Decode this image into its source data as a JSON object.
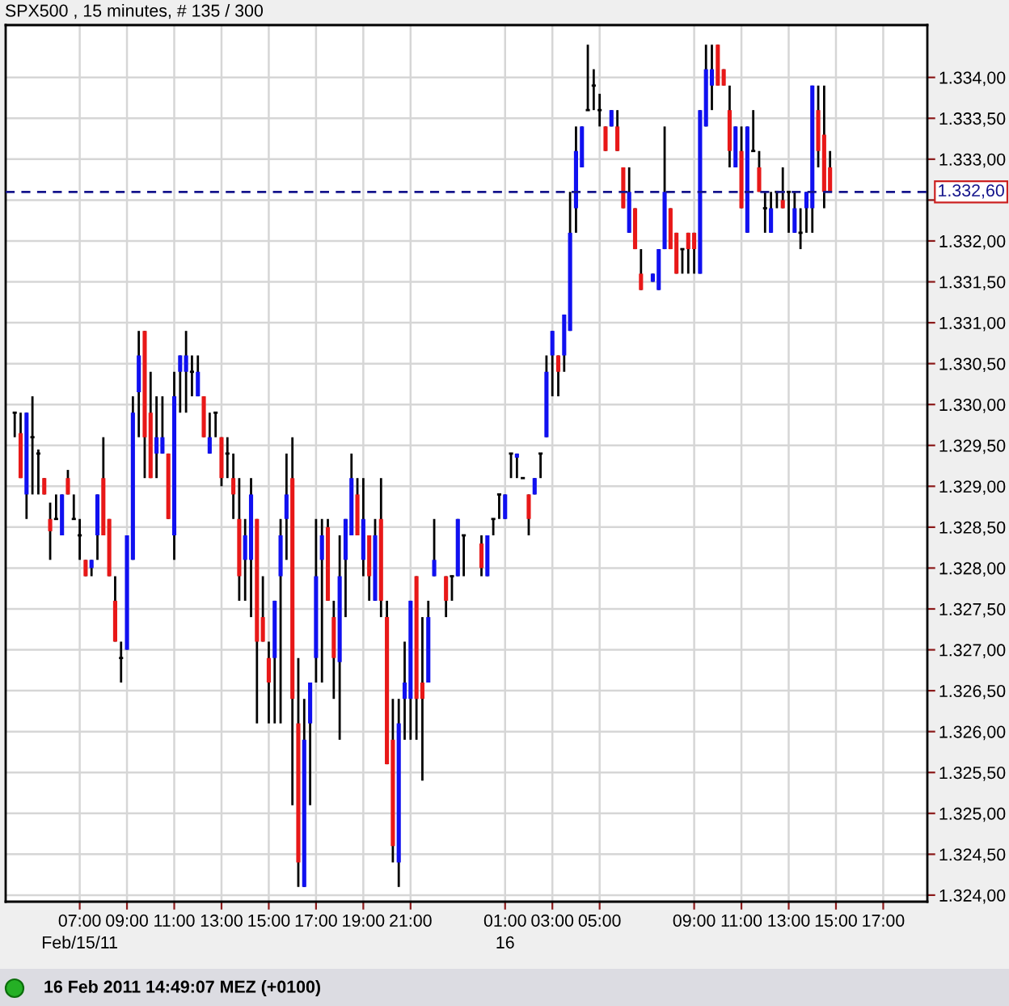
{
  "chart_data": {
    "type": "candlestick",
    "title": "SPX500 , 15 minutes, # 135 / 300",
    "annotations": [
      "16 Feb 2011 14:49:07 MEZ (+0100)"
    ],
    "x": [
      "2011-02-15T04:15",
      "2011-02-15T04:30",
      "2011-02-15T04:45",
      "2011-02-15T05:00",
      "2011-02-15T05:15",
      "2011-02-15T05:30",
      "2011-02-15T05:45",
      "2011-02-15T06:00",
      "2011-02-15T06:15",
      "2011-02-15T06:30",
      "2011-02-15T06:45",
      "2011-02-15T07:00",
      "2011-02-15T07:15",
      "2011-02-15T07:30",
      "2011-02-15T07:45",
      "2011-02-15T08:00",
      "2011-02-15T08:15",
      "2011-02-15T08:30",
      "2011-02-15T08:45",
      "2011-02-15T09:00",
      "2011-02-15T09:15",
      "2011-02-15T09:30",
      "2011-02-15T09:45",
      "2011-02-15T10:00",
      "2011-02-15T10:15",
      "2011-02-15T10:30",
      "2011-02-15T10:45",
      "2011-02-15T11:00",
      "2011-02-15T11:15",
      "2011-02-15T11:30",
      "2011-02-15T11:45",
      "2011-02-15T12:00",
      "2011-02-15T12:15",
      "2011-02-15T12:30",
      "2011-02-15T12:45",
      "2011-02-15T13:00",
      "2011-02-15T13:15",
      "2011-02-15T13:30",
      "2011-02-15T13:45",
      "2011-02-15T14:00",
      "2011-02-15T14:15",
      "2011-02-15T14:30",
      "2011-02-15T14:45",
      "2011-02-15T15:00",
      "2011-02-15T15:15",
      "2011-02-15T15:30",
      "2011-02-15T15:45",
      "2011-02-15T16:00",
      "2011-02-15T16:15",
      "2011-02-15T16:30",
      "2011-02-15T16:45",
      "2011-02-15T17:00",
      "2011-02-15T17:15",
      "2011-02-15T17:30",
      "2011-02-15T17:45",
      "2011-02-15T18:00",
      "2011-02-15T18:15",
      "2011-02-15T18:30",
      "2011-02-15T18:45",
      "2011-02-15T19:00",
      "2011-02-15T19:15",
      "2011-02-15T19:30",
      "2011-02-15T19:45",
      "2011-02-15T20:00",
      "2011-02-15T20:15",
      "2011-02-15T20:30",
      "2011-02-15T20:45",
      "2011-02-15T21:00",
      "2011-02-15T21:15",
      "2011-02-15T21:30",
      "2011-02-15T21:45",
      "2011-02-15T22:00",
      "2011-02-15T22:30",
      "2011-02-15T22:45",
      "2011-02-15T23:00",
      "2011-02-15T23:15",
      "2011-02-16T00:00",
      "2011-02-16T00:15",
      "2011-02-16T00:30",
      "2011-02-16T00:45",
      "2011-02-16T01:00",
      "2011-02-16T01:15",
      "2011-02-16T01:30",
      "2011-02-16T01:45",
      "2011-02-16T02:00",
      "2011-02-16T02:15",
      "2011-02-16T02:30",
      "2011-02-16T02:45",
      "2011-02-16T03:00",
      "2011-02-16T03:15",
      "2011-02-16T03:30",
      "2011-02-16T03:45",
      "2011-02-16T04:00",
      "2011-02-16T04:15",
      "2011-02-16T04:30",
      "2011-02-16T04:45",
      "2011-02-16T05:00",
      "2011-02-16T05:15",
      "2011-02-16T05:30",
      "2011-02-16T05:45",
      "2011-02-16T06:00",
      "2011-02-16T06:15",
      "2011-02-16T06:30",
      "2011-02-16T06:45",
      "2011-02-16T07:15",
      "2011-02-16T07:30",
      "2011-02-16T07:45",
      "2011-02-16T08:00",
      "2011-02-16T08:15",
      "2011-02-16T08:30",
      "2011-02-16T08:45",
      "2011-02-16T09:00",
      "2011-02-16T09:15",
      "2011-02-16T09:30",
      "2011-02-16T09:45",
      "2011-02-16T10:00",
      "2011-02-16T10:15",
      "2011-02-16T10:30",
      "2011-02-16T10:45",
      "2011-02-16T11:00",
      "2011-02-16T11:15",
      "2011-02-16T11:30",
      "2011-02-16T11:45",
      "2011-02-16T12:00",
      "2011-02-16T12:15",
      "2011-02-16T12:30",
      "2011-02-16T12:45",
      "2011-02-16T13:00",
      "2011-02-16T13:15",
      "2011-02-16T13:30",
      "2011-02-16T13:45",
      "2011-02-16T14:00",
      "2011-02-16T14:15",
      "2011-02-16T14:30",
      "2011-02-16T14:45"
    ],
    "ohlc": [
      [
        1329.9,
        1329.9,
        1329.6,
        1329.9
      ],
      [
        1329.65,
        1329.9,
        1329.1,
        1329.1
      ],
      [
        1328.9,
        1329.9,
        1328.6,
        1329.9
      ],
      [
        1329.6,
        1330.1,
        1328.9,
        1329.6
      ],
      [
        1329.4,
        1329.45,
        1328.9,
        1329.4
      ],
      [
        1329.1,
        1329.1,
        1328.9,
        1328.9
      ],
      [
        1328.6,
        1328.8,
        1328.1,
        1328.45
      ],
      [
        1328.6,
        1328.9,
        1328.6,
        1328.6
      ],
      [
        1328.4,
        1328.9,
        1328.4,
        1328.9
      ],
      [
        1329.1,
        1329.2,
        1328.9,
        1328.9
      ],
      [
        1328.6,
        1328.9,
        1328.6,
        1328.6
      ],
      [
        1328.4,
        1328.6,
        1328.1,
        1328.4
      ],
      [
        1328.1,
        1328.1,
        1327.9,
        1327.9
      ],
      [
        1328.0,
        1328.1,
        1327.9,
        1328.1
      ],
      [
        1328.4,
        1328.9,
        1328.1,
        1328.9
      ],
      [
        1329.1,
        1329.6,
        1328.4,
        1328.4
      ],
      [
        1328.6,
        1328.6,
        1327.9,
        1327.9
      ],
      [
        1327.6,
        1327.9,
        1327.1,
        1327.1
      ],
      [
        1326.9,
        1327.1,
        1326.6,
        1326.9
      ],
      [
        1327.0,
        1328.4,
        1327.0,
        1328.4
      ],
      [
        1328.1,
        1330.1,
        1328.1,
        1329.9
      ],
      [
        1330.15,
        1330.9,
        1329.6,
        1330.6
      ],
      [
        1330.9,
        1330.9,
        1329.1,
        1329.6
      ],
      [
        1329.9,
        1330.4,
        1329.1,
        1329.1
      ],
      [
        1329.4,
        1330.1,
        1329.1,
        1329.6
      ],
      [
        1329.4,
        1330.1,
        1329.4,
        1329.6
      ],
      [
        1329.4,
        1329.4,
        1328.6,
        1328.6
      ],
      [
        1328.4,
        1330.4,
        1328.1,
        1330.1
      ],
      [
        1330.4,
        1330.6,
        1329.9,
        1330.6
      ],
      [
        1330.4,
        1330.9,
        1329.9,
        1330.6
      ],
      [
        1330.4,
        1330.6,
        1330.1,
        1330.4
      ],
      [
        1330.1,
        1330.6,
        1330.1,
        1330.4
      ],
      [
        1330.1,
        1330.1,
        1329.6,
        1329.6
      ],
      [
        1329.4,
        1329.9,
        1329.4,
        1329.6
      ],
      [
        1329.9,
        1329.9,
        1329.6,
        1329.9
      ],
      [
        1329.6,
        1329.6,
        1329.0,
        1329.1
      ],
      [
        1329.4,
        1329.6,
        1329.1,
        1329.4
      ],
      [
        1329.1,
        1329.4,
        1328.6,
        1328.9
      ],
      [
        1328.6,
        1329.1,
        1327.6,
        1327.9
      ],
      [
        1328.1,
        1328.6,
        1327.6,
        1328.4
      ],
      [
        1328.1,
        1329.1,
        1327.4,
        1328.9
      ],
      [
        1328.6,
        1328.6,
        1326.1,
        1327.1
      ],
      [
        1327.4,
        1327.9,
        1327.1,
        1327.1
      ],
      [
        1326.9,
        1327.1,
        1326.1,
        1326.6
      ],
      [
        1326.9,
        1327.6,
        1326.1,
        1327.6
      ],
      [
        1327.9,
        1328.6,
        1326.1,
        1328.4
      ],
      [
        1328.6,
        1329.4,
        1328.1,
        1328.9
      ],
      [
        1329.1,
        1329.6,
        1325.1,
        1326.4
      ],
      [
        1326.1,
        1326.9,
        1324.1,
        1324.4
      ],
      [
        1324.1,
        1326.4,
        1324.1,
        1325.9
      ],
      [
        1326.1,
        1326.6,
        1325.1,
        1326.6
      ],
      [
        1326.9,
        1328.6,
        1326.6,
        1327.9
      ],
      [
        1328.1,
        1328.6,
        1326.6,
        1328.4
      ],
      [
        1328.5,
        1328.6,
        1327.6,
        1327.6
      ],
      [
        1327.4,
        1327.6,
        1326.4,
        1326.9
      ],
      [
        1326.85,
        1328.4,
        1325.9,
        1327.9
      ],
      [
        1328.1,
        1328.6,
        1327.4,
        1328.6
      ],
      [
        1328.4,
        1329.4,
        1328.4,
        1329.1
      ],
      [
        1328.9,
        1329.1,
        1328.4,
        1328.4
      ],
      [
        1328.1,
        1329.1,
        1327.9,
        1328.6
      ],
      [
        1328.4,
        1328.4,
        1327.6,
        1327.9
      ],
      [
        1327.6,
        1328.6,
        1327.6,
        1328.4
      ],
      [
        1328.6,
        1329.1,
        1327.4,
        1327.6
      ],
      [
        1327.4,
        1327.6,
        1325.6,
        1325.6
      ],
      [
        1325.9,
        1326.4,
        1324.4,
        1324.6
      ],
      [
        1324.4,
        1326.4,
        1324.1,
        1326.1
      ],
      [
        1326.4,
        1327.1,
        1325.9,
        1326.6
      ],
      [
        1326.4,
        1327.6,
        1325.9,
        1327.6
      ],
      [
        1327.9,
        1327.9,
        1325.9,
        1326.4
      ],
      [
        1326.6,
        1327.4,
        1325.4,
        1326.4
      ],
      [
        1326.6,
        1327.6,
        1326.6,
        1327.4
      ],
      [
        1327.9,
        1328.6,
        1327.9,
        1328.1
      ],
      [
        1327.9,
        1327.9,
        1327.4,
        1327.6
      ],
      [
        1327.9,
        1327.9,
        1327.6,
        1327.9
      ],
      [
        1327.9,
        1328.6,
        1327.9,
        1328.6
      ],
      [
        1328.4,
        1328.4,
        1327.9,
        1328.4
      ],
      [
        1328.3,
        1328.4,
        1327.9,
        1328.0
      ],
      [
        1327.9,
        1328.4,
        1327.9,
        1328.4
      ],
      [
        1328.6,
        1328.6,
        1328.4,
        1328.6
      ],
      [
        1328.9,
        1328.9,
        1328.6,
        1328.9
      ],
      [
        1328.6,
        1328.9,
        1328.6,
        1328.9
      ],
      [
        1329.4,
        1329.4,
        1329.1,
        1329.4
      ],
      [
        1329.35,
        1329.4,
        1329.1,
        1329.4
      ],
      [
        1329.1,
        1329.1,
        1329.1,
        1329.1
      ],
      [
        1328.9,
        1328.9,
        1328.4,
        1328.6
      ],
      [
        1328.9,
        1329.1,
        1328.9,
        1329.1
      ],
      [
        1329.4,
        1329.4,
        1329.1,
        1329.4
      ],
      [
        1329.6,
        1330.6,
        1329.6,
        1330.4
      ],
      [
        1330.6,
        1330.9,
        1330.1,
        1330.9
      ],
      [
        1330.6,
        1330.6,
        1330.1,
        1330.4
      ],
      [
        1330.6,
        1331.1,
        1330.4,
        1331.1
      ],
      [
        1330.9,
        1332.6,
        1330.9,
        1332.1
      ],
      [
        1332.4,
        1333.4,
        1332.1,
        1333.1
      ],
      [
        1332.9,
        1333.4,
        1332.9,
        1333.4
      ],
      [
        1333.6,
        1334.4,
        1333.6,
        1333.6
      ],
      [
        1333.9,
        1334.1,
        1333.6,
        1333.9
      ],
      [
        1333.6,
        1333.8,
        1333.4,
        1333.6
      ],
      [
        1333.4,
        1333.4,
        1333.1,
        1333.1
      ],
      [
        1333.4,
        1333.6,
        1333.4,
        1333.6
      ],
      [
        1333.4,
        1333.6,
        1333.1,
        1333.1
      ],
      [
        1332.9,
        1332.9,
        1332.4,
        1332.4
      ],
      [
        1332.1,
        1332.9,
        1332.1,
        1332.6
      ],
      [
        1332.4,
        1332.4,
        1331.9,
        1331.9
      ],
      [
        1331.6,
        1331.9,
        1331.4,
        1331.4
      ],
      [
        1331.5,
        1331.6,
        1331.5,
        1331.6
      ],
      [
        1331.4,
        1331.9,
        1331.4,
        1331.9
      ],
      [
        1331.9,
        1333.4,
        1331.9,
        1332.6
      ],
      [
        1332.4,
        1332.4,
        1331.9,
        1331.9
      ],
      [
        1332.1,
        1332.1,
        1331.6,
        1331.6
      ],
      [
        1331.9,
        1331.9,
        1331.6,
        1331.9
      ],
      [
        1332.1,
        1332.1,
        1331.6,
        1331.9
      ],
      [
        1332.1,
        1332.1,
        1331.6,
        1331.9
      ],
      [
        1331.6,
        1333.6,
        1331.6,
        1333.6
      ],
      [
        1333.4,
        1334.4,
        1333.4,
        1334.1
      ],
      [
        1333.9,
        1334.4,
        1333.6,
        1334.1
      ],
      [
        1334.4,
        1334.4,
        1333.9,
        1333.9
      ],
      [
        1334.1,
        1334.1,
        1333.9,
        1333.9
      ],
      [
        1333.6,
        1333.9,
        1332.9,
        1333.1
      ],
      [
        1332.9,
        1333.4,
        1332.9,
        1333.4
      ],
      [
        1333.1,
        1333.4,
        1332.4,
        1332.4
      ],
      [
        1332.1,
        1333.4,
        1332.1,
        1333.4
      ],
      [
        1333.1,
        1333.6,
        1333.1,
        1333.1
      ],
      [
        1332.9,
        1333.1,
        1332.6,
        1332.6
      ],
      [
        1332.4,
        1332.6,
        1332.1,
        1332.4
      ],
      [
        1332.1,
        1332.6,
        1332.1,
        1332.4
      ],
      [
        1332.6,
        1332.6,
        1332.4,
        1332.6
      ],
      [
        1332.5,
        1332.9,
        1332.4,
        1332.4
      ],
      [
        1332.6,
        1332.6,
        1332.1,
        1332.6
      ],
      [
        1332.1,
        1332.6,
        1332.1,
        1332.4
      ],
      [
        1332.1,
        1332.4,
        1331.9,
        1332.1
      ],
      [
        1332.4,
        1332.6,
        1332.1,
        1332.6
      ],
      [
        1332.4,
        1333.9,
        1332.1,
        1333.9
      ],
      [
        1333.6,
        1333.9,
        1332.9,
        1333.1
      ],
      [
        1333.3,
        1333.9,
        1332.4,
        1332.6
      ],
      [
        1332.9,
        1333.1,
        1332.6,
        1332.6
      ]
    ],
    "colors": [
      "#000000",
      "#e81818",
      "#1010f0",
      "#000000",
      "#000000",
      "#e81818",
      "#e81818",
      "#000000",
      "#1010f0",
      "#e81818",
      "#000000",
      "#000000",
      "#e81818",
      "#1010f0",
      "#1010f0",
      "#e81818",
      "#e81818",
      "#e81818",
      "#000000",
      "#1010f0",
      "#1010f0",
      "#1010f0",
      "#e81818",
      "#e81818",
      "#1010f0",
      "#1010f0",
      "#e81818",
      "#1010f0",
      "#1010f0",
      "#1010f0",
      "#000000",
      "#1010f0",
      "#e81818",
      "#1010f0",
      "#000000",
      "#e81818",
      "#000000",
      "#e81818",
      "#e81818",
      "#1010f0",
      "#1010f0",
      "#e81818",
      "#e81818",
      "#e81818",
      "#1010f0",
      "#1010f0",
      "#1010f0",
      "#e81818",
      "#e81818",
      "#1010f0",
      "#1010f0",
      "#1010f0",
      "#1010f0",
      "#e81818",
      "#e81818",
      "#1010f0",
      "#1010f0",
      "#1010f0",
      "#e81818",
      "#1010f0",
      "#e81818",
      "#1010f0",
      "#e81818",
      "#e81818",
      "#e81818",
      "#1010f0",
      "#1010f0",
      "#1010f0",
      "#e81818",
      "#e81818",
      "#1010f0",
      "#1010f0",
      "#e81818",
      "#000000",
      "#1010f0",
      "#000000",
      "#e81818",
      "#1010f0",
      "#000000",
      "#000000",
      "#1010f0",
      "#000000",
      "#1010f0",
      "#000000",
      "#e81818",
      "#1010f0",
      "#000000",
      "#1010f0",
      "#1010f0",
      "#e81818",
      "#1010f0",
      "#1010f0",
      "#1010f0",
      "#1010f0",
      "#000000",
      "#000000",
      "#000000",
      "#e81818",
      "#1010f0",
      "#e81818",
      "#e81818",
      "#1010f0",
      "#e81818",
      "#e81818",
      "#1010f0",
      "#1010f0",
      "#1010f0",
      "#e81818",
      "#e81818",
      "#000000",
      "#e81818",
      "#e81818",
      "#1010f0",
      "#1010f0",
      "#1010f0",
      "#e81818",
      "#e81818",
      "#e81818",
      "#1010f0",
      "#e81818",
      "#1010f0",
      "#000000",
      "#e81818",
      "#000000",
      "#1010f0",
      "#000000",
      "#e81818",
      "#000000",
      "#1010f0",
      "#000000",
      "#1010f0",
      "#1010f0",
      "#e81818",
      "#e81818",
      "#e81818"
    ],
    "xlim": [
      "2011-02-15T03:52",
      "2011-02-16T18:52"
    ],
    "xticks": [
      {
        "value": "2011-02-15T07:00",
        "label": "07:00\nFeb/15/11"
      },
      {
        "value": "2011-02-15T09:00",
        "label": "09:00"
      },
      {
        "value": "2011-02-15T11:00",
        "label": "11:00"
      },
      {
        "value": "2011-02-15T13:00",
        "label": "13:00"
      },
      {
        "value": "2011-02-15T15:00",
        "label": "15:00"
      },
      {
        "value": "2011-02-15T17:00",
        "label": "17:00"
      },
      {
        "value": "2011-02-15T19:00",
        "label": "19:00"
      },
      {
        "value": "2011-02-15T21:00",
        "label": "21:00"
      },
      {
        "value": "2011-02-16T01:00",
        "label": "01:00\n16"
      },
      {
        "value": "2011-02-16T03:00",
        "label": "03:00"
      },
      {
        "value": "2011-02-16T05:00",
        "label": "05:00"
      },
      {
        "value": "2011-02-16T09:00",
        "label": "09:00"
      },
      {
        "value": "2011-02-16T11:00",
        "label": "11:00"
      },
      {
        "value": "2011-02-16T13:00",
        "label": "13:00"
      },
      {
        "value": "2011-02-16T15:00",
        "label": "15:00"
      },
      {
        "value": "2011-02-16T17:00",
        "label": "17:00"
      }
    ],
    "ylim": [
      1323.92,
      1334.64
    ],
    "yticks": [
      {
        "value": 1324,
        "label": "1.324,00"
      },
      {
        "value": 1324.5,
        "label": "1.324,50"
      },
      {
        "value": 1325,
        "label": "1.325,00"
      },
      {
        "value": 1325.5,
        "label": "1.325,50"
      },
      {
        "value": 1326,
        "label": "1.326,00"
      },
      {
        "value": 1326.5,
        "label": "1.326,50"
      },
      {
        "value": 1327,
        "label": "1.327,00"
      },
      {
        "value": 1327.5,
        "label": "1.327,50"
      },
      {
        "value": 1328,
        "label": "1.328,00"
      },
      {
        "value": 1328.5,
        "label": "1.328,50"
      },
      {
        "value": 1329,
        "label": "1.329,00"
      },
      {
        "value": 1329.5,
        "label": "1.329,50"
      },
      {
        "value": 1330,
        "label": "1.330,00"
      },
      {
        "value": 1330.5,
        "label": "1.330,50"
      },
      {
        "value": 1331,
        "label": "1.331,00"
      },
      {
        "value": 1331.5,
        "label": "1.331,50"
      },
      {
        "value": 1332,
        "label": "1.332,00"
      },
      {
        "value": 1332.5,
        "label": null
      },
      {
        "value": 1333,
        "label": "1.333,00"
      },
      {
        "value": 1333.5,
        "label": "1.333,50"
      },
      {
        "value": 1334,
        "label": "1.334,00"
      }
    ],
    "grid": true,
    "ref_lines": [
      {
        "axis": "y",
        "value": 1332.6,
        "label": "1.332,60",
        "color": "#14148c",
        "line_style": "dashed"
      }
    ]
  }
}
